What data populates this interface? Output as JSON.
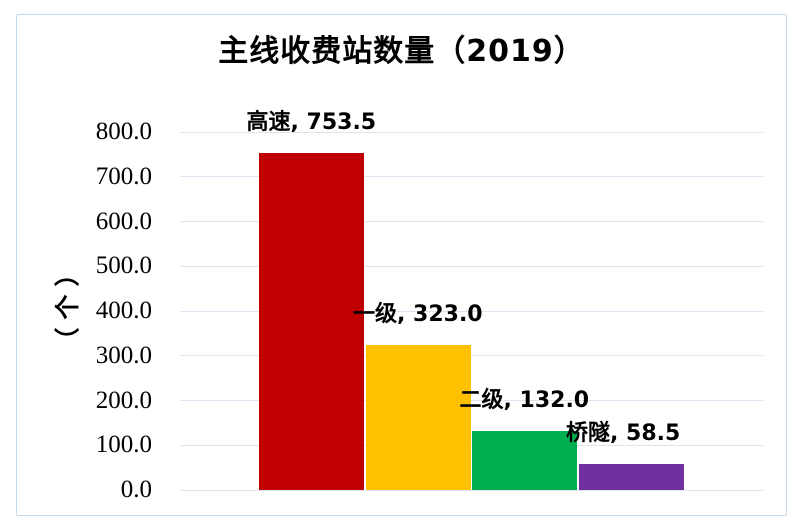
{
  "chart_data": {
    "type": "bar",
    "title": "主线收费站数量（2019）",
    "ylabel": "（个）",
    "categories": [
      "高速",
      "一级",
      "二级",
      "桥隧"
    ],
    "values": [
      753.5,
      323.0,
      132.0,
      58.5
    ],
    "data_labels": [
      "高速, 753.5",
      "一级, 323.0",
      "二级, 132.0",
      "桥隧, 58.5"
    ],
    "series_colors": [
      "#c00000",
      "#ffc000",
      "#00b050",
      "#7030a0"
    ],
    "ylim": [
      0,
      800
    ],
    "ytick_step": 100,
    "ytick_labels": [
      "0.0",
      "100.0",
      "200.0",
      "300.0",
      "400.0",
      "500.0",
      "600.0",
      "700.0",
      "800.0"
    ],
    "grid": true,
    "legend": "none"
  },
  "colors": {
    "gridline": "#dce6f1",
    "frame_border": "#c9dcee",
    "text": "#000000"
  }
}
